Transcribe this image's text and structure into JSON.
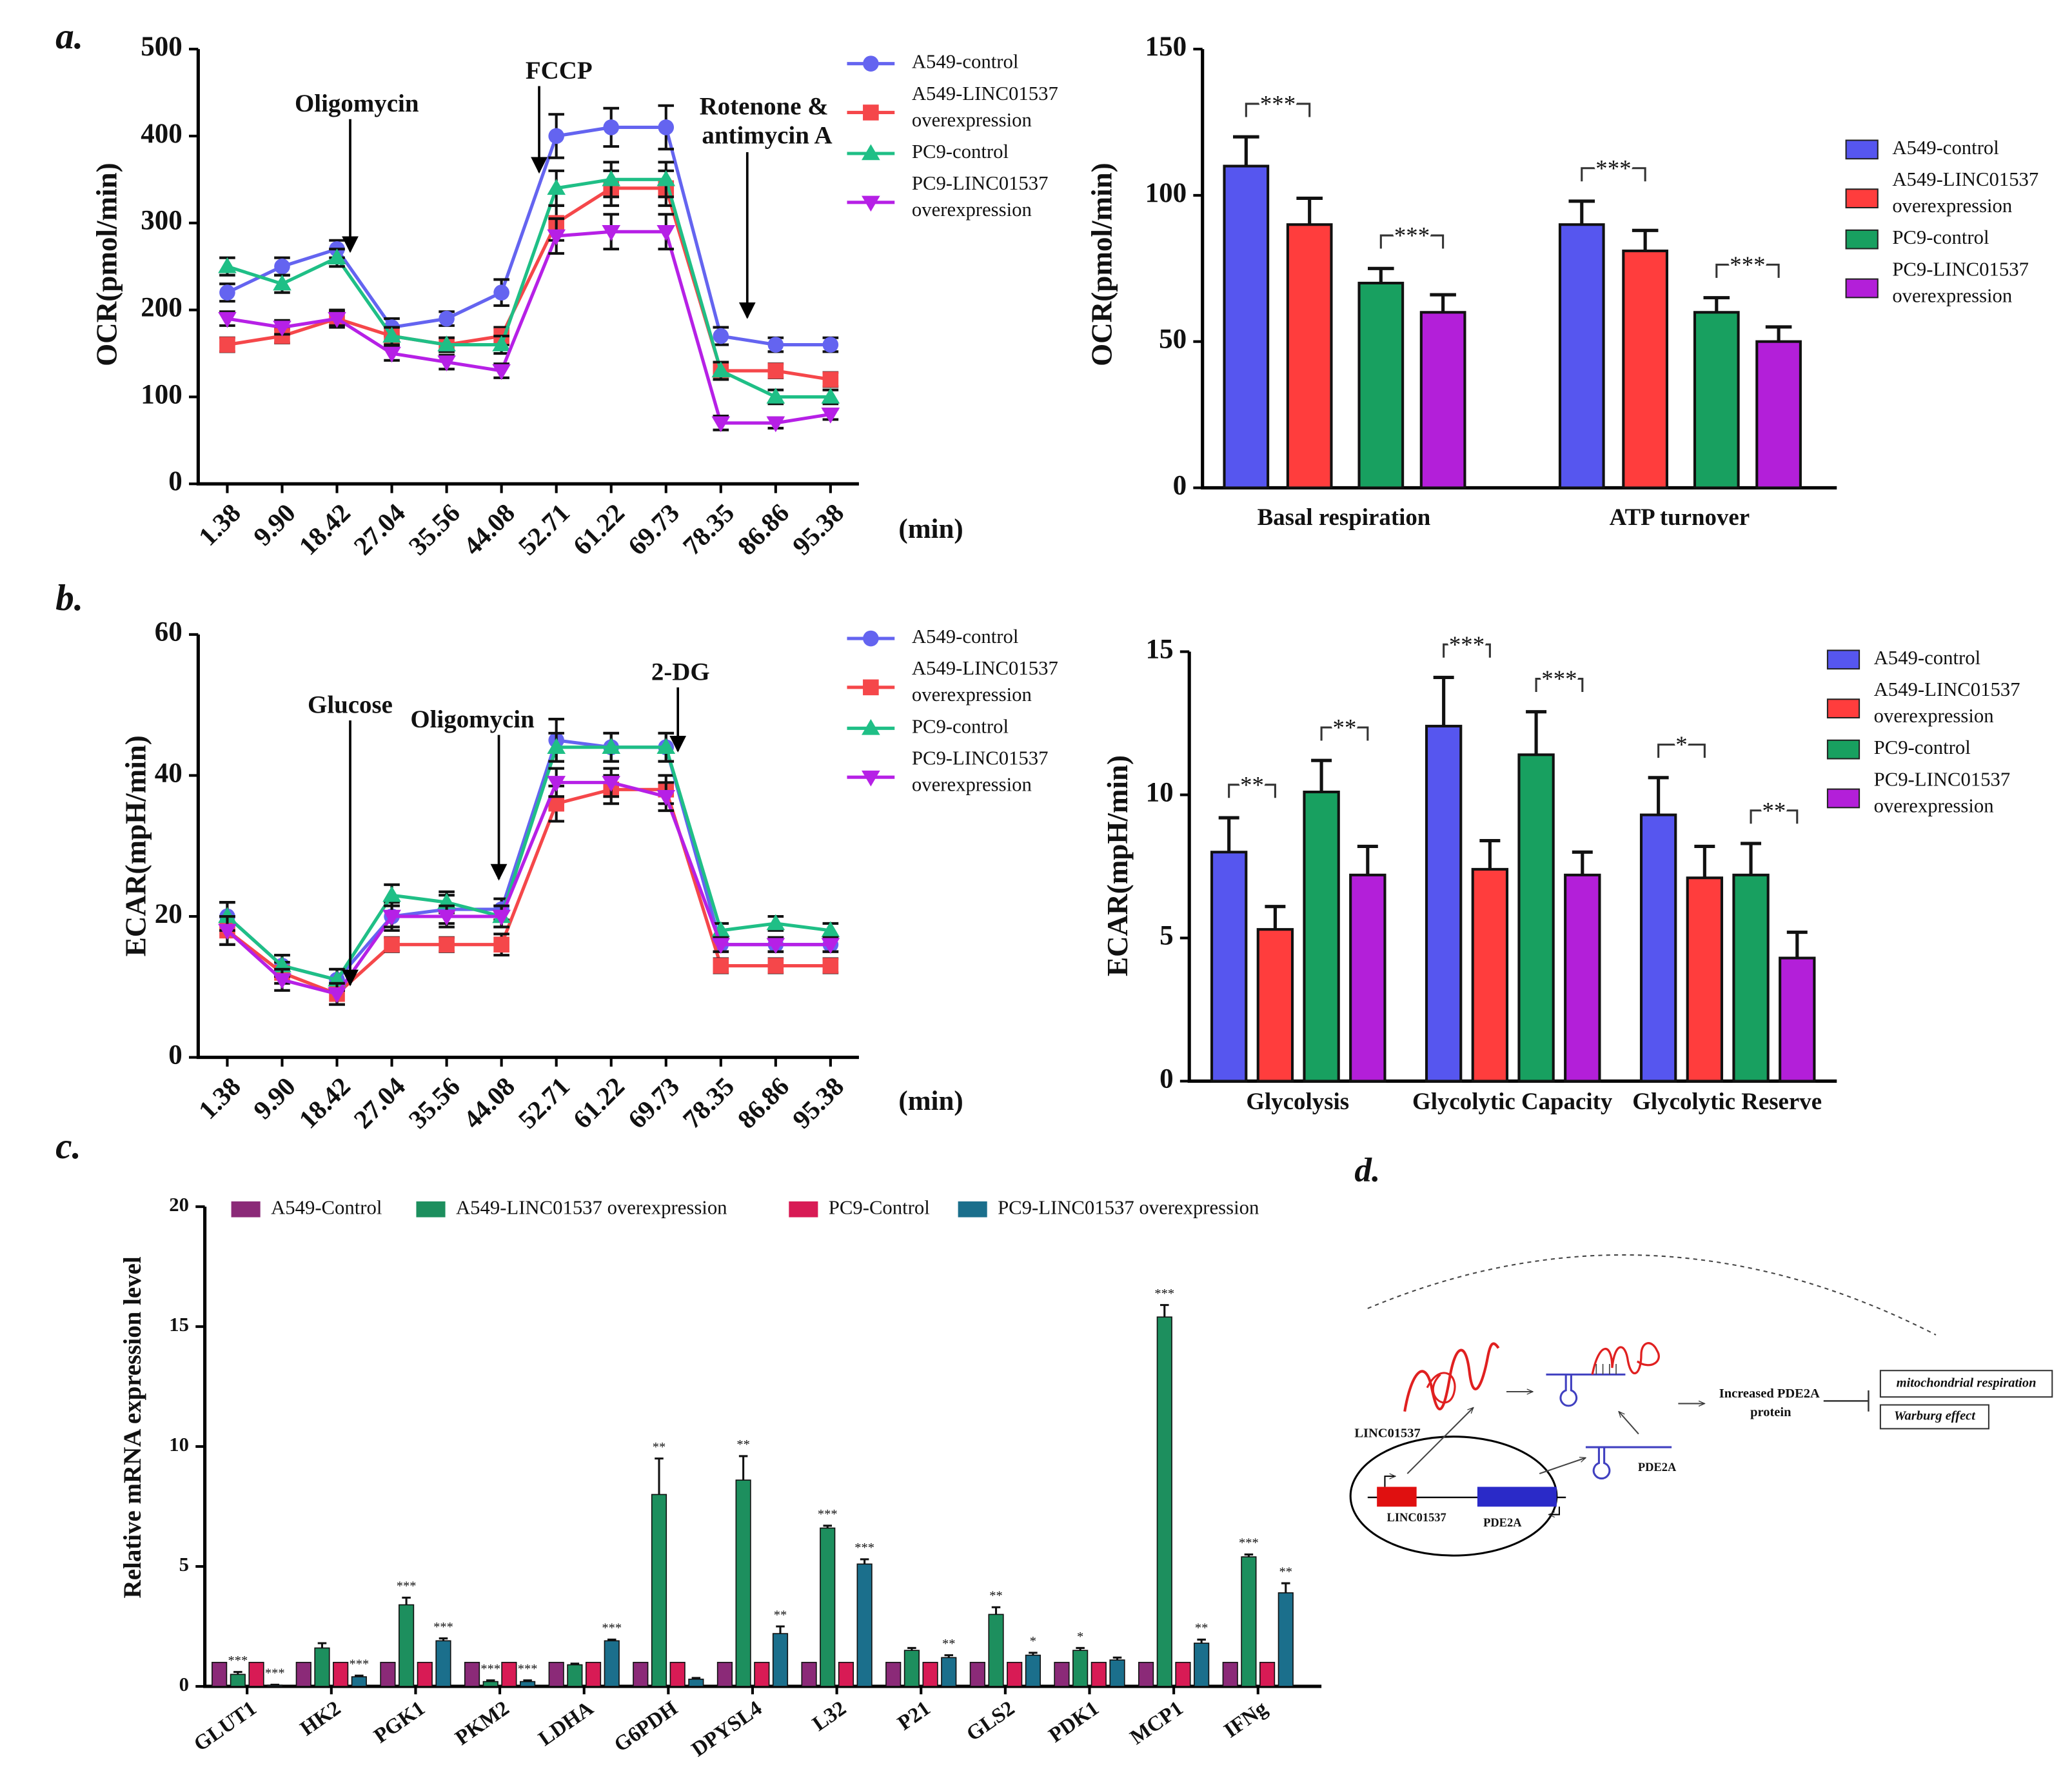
{
  "chart_data": [
    {
      "type": "line",
      "panel_label": "a.",
      "y_label": "OCR(pmol/min)",
      "x_label": "(min)",
      "categories": [
        "1.38",
        "9.90",
        "18.42",
        "27.04",
        "35.56",
        "44.08",
        "52.71",
        "61.22",
        "69.73",
        "78.35",
        "86.86",
        "95.38"
      ],
      "ylim": [
        0,
        500
      ],
      "yticks": [
        0,
        100,
        200,
        300,
        400,
        500
      ],
      "series": [
        {
          "name": "A549-control",
          "color": "#6464f0",
          "marker": "circle",
          "values": [
            220,
            250,
            270,
            180,
            190,
            220,
            400,
            410,
            410,
            170,
            160,
            160
          ],
          "errors": [
            10,
            10,
            10,
            10,
            8,
            15,
            25,
            22,
            25,
            10,
            8,
            8
          ]
        },
        {
          "name": "A549-LINC01537 overexpression",
          "color": "#f5474a",
          "marker": "square",
          "values": [
            160,
            170,
            190,
            170,
            160,
            170,
            300,
            340,
            340,
            130,
            130,
            120
          ],
          "errors": [
            8,
            8,
            10,
            10,
            8,
            10,
            20,
            20,
            20,
            10,
            8,
            8
          ]
        },
        {
          "name": "PC9-control",
          "color": "#1fbf86",
          "marker": "triangle-up",
          "values": [
            250,
            230,
            260,
            170,
            160,
            160,
            340,
            350,
            350,
            130,
            100,
            100
          ],
          "errors": [
            10,
            10,
            10,
            10,
            8,
            10,
            20,
            20,
            20,
            10,
            8,
            8
          ]
        },
        {
          "name": "PC9-LINC01537 overexpression",
          "color": "#b620e6",
          "marker": "triangle-down",
          "values": [
            190,
            180,
            190,
            150,
            140,
            130,
            285,
            290,
            290,
            70,
            70,
            80
          ],
          "errors": [
            8,
            8,
            8,
            8,
            8,
            8,
            20,
            20,
            20,
            8,
            6,
            6
          ]
        }
      ],
      "annotations": [
        {
          "text": "Oligomycin",
          "category": 2
        },
        {
          "text": "FCCP",
          "category": 6
        },
        {
          "text": "Rotenone & antimycin A",
          "category": 9
        }
      ]
    },
    {
      "type": "bar",
      "y_label": "OCR(pmol/min)",
      "categories": [
        "Basal respiration",
        "ATP turnover"
      ],
      "ylim": [
        0,
        150
      ],
      "yticks": [
        0,
        50,
        100,
        150
      ],
      "series": [
        {
          "name": "A549-control",
          "color": "#5656ef",
          "values": [
            110,
            90
          ],
          "errors": [
            10,
            8
          ]
        },
        {
          "name": "A549-LINC01537 overexpression",
          "color": "#ff3d3d",
          "values": [
            90,
            81
          ],
          "errors": [
            9,
            7
          ]
        },
        {
          "name": "PC9-control",
          "color": "#18a060",
          "values": [
            70,
            60
          ],
          "errors": [
            5,
            5
          ]
        },
        {
          "name": "PC9-LINC01537 overexpression",
          "color": "#b31fd9",
          "values": [
            60,
            50
          ],
          "errors": [
            6,
            5
          ]
        }
      ],
      "significance": [
        {
          "text": "***",
          "category": 0,
          "series": [
            0,
            1
          ]
        },
        {
          "text": "***",
          "category": 0,
          "series": [
            2,
            3
          ]
        },
        {
          "text": "***",
          "category": 1,
          "series": [
            0,
            1
          ]
        },
        {
          "text": "***",
          "category": 1,
          "series": [
            2,
            3
          ]
        }
      ]
    },
    {
      "type": "line",
      "panel_label": "b.",
      "y_label": "ECAR(mpH/min)",
      "x_label": "(min)",
      "categories": [
        "1.38",
        "9.90",
        "18.42",
        "27.04",
        "35.56",
        "44.08",
        "52.71",
        "61.22",
        "69.73",
        "78.35",
        "86.86",
        "95.38"
      ],
      "ylim": [
        0,
        60
      ],
      "yticks": [
        0,
        20,
        40,
        60
      ],
      "series": [
        {
          "name": "A549-control",
          "color": "#6464f0",
          "marker": "circle",
          "values": [
            20,
            13,
            11,
            20,
            21,
            21,
            45,
            44,
            44,
            16,
            16,
            16
          ],
          "errors": [
            2,
            1.5,
            1.5,
            2,
            2,
            1.5,
            3,
            2,
            2,
            1,
            1,
            1
          ]
        },
        {
          "name": "A549-LINC01537 overexpression",
          "color": "#f5474a",
          "marker": "square",
          "values": [
            18,
            12,
            9,
            16,
            16,
            16,
            36,
            38,
            38,
            13,
            13,
            13
          ],
          "errors": [
            2,
            1.5,
            1.5,
            1,
            1,
            1.5,
            2.5,
            2,
            2,
            1,
            1,
            1
          ]
        },
        {
          "name": "PC9-control",
          "color": "#1fbf86",
          "marker": "triangle-up",
          "values": [
            20,
            13,
            11,
            23,
            22,
            20,
            44,
            44,
            44,
            18,
            19,
            18
          ],
          "errors": [
            2,
            1.5,
            1.5,
            1.5,
            1.5,
            1.5,
            2,
            2,
            2,
            1,
            1,
            1
          ]
        },
        {
          "name": "PC9-LINC01537 overexpression",
          "color": "#b620e6",
          "marker": "triangle-down",
          "values": [
            18,
            11,
            9,
            20,
            20,
            20,
            39,
            39,
            37,
            16,
            16,
            16
          ],
          "errors": [
            2,
            1.5,
            1.5,
            1.5,
            1.5,
            1.5,
            2,
            2,
            2,
            1,
            1,
            1
          ]
        }
      ],
      "annotations": [
        {
          "text": "Glucose",
          "category": 2
        },
        {
          "text": "Oligomycin",
          "category": 5
        },
        {
          "text": "2-DG",
          "category": 8
        }
      ]
    },
    {
      "type": "bar",
      "y_label": "ECAR(mpH/min)",
      "categories": [
        "Glycolysis",
        "Glycolytic Capacity",
        "Glycolytic Reserve"
      ],
      "ylim": [
        0,
        15
      ],
      "yticks": [
        0,
        5,
        10,
        15
      ],
      "series": [
        {
          "name": "A549-control",
          "color": "#5656ef",
          "values": [
            8.0,
            12.4,
            9.3
          ],
          "errors": [
            1.2,
            1.7,
            1.3
          ]
        },
        {
          "name": "A549-LINC01537 overexpression",
          "color": "#ff3d3d",
          "values": [
            5.3,
            7.4,
            7.1
          ],
          "errors": [
            0.8,
            1.0,
            1.1
          ]
        },
        {
          "name": "PC9-control",
          "color": "#18a060",
          "values": [
            10.1,
            11.4,
            7.2
          ],
          "errors": [
            1.1,
            1.5,
            1.1
          ]
        },
        {
          "name": "PC9-LINC01537 overexpression",
          "color": "#b31fd9",
          "values": [
            7.2,
            7.2,
            4.3
          ],
          "errors": [
            1.0,
            0.8,
            0.9
          ]
        }
      ],
      "significance": [
        {
          "text": "**",
          "category": 0,
          "series": [
            0,
            1
          ]
        },
        {
          "text": "**",
          "category": 0,
          "series": [
            2,
            3
          ]
        },
        {
          "text": "***",
          "category": 1,
          "series": [
            0,
            1
          ]
        },
        {
          "text": "***",
          "category": 1,
          "series": [
            2,
            3
          ]
        },
        {
          "text": "*",
          "category": 2,
          "series": [
            0,
            1
          ]
        },
        {
          "text": "**",
          "category": 2,
          "series": [
            2,
            3
          ]
        }
      ]
    },
    {
      "type": "bar",
      "panel_label": "c.",
      "y_label": "Relative mRNA expression level",
      "categories": [
        "GLUT1",
        "HK2",
        "PGK1",
        "PKM2",
        "LDHA",
        "G6PDH",
        "DPYSL4",
        "L32",
        "P21",
        "GLS2",
        "PDK1",
        "MCP1",
        "IFNg"
      ],
      "ylim": [
        0,
        20
      ],
      "yticks": [
        0,
        5,
        10,
        15,
        20
      ],
      "series": [
        {
          "name": "A549-Control",
          "color": "#8b2a78",
          "values": [
            1,
            1,
            1,
            1,
            1,
            1,
            1,
            1,
            1,
            1,
            1,
            1,
            1
          ]
        },
        {
          "name": "A549-LINC01537 overexpression",
          "color": "#1d8f5e",
          "values": [
            0.5,
            1.6,
            3.4,
            0.2,
            0.9,
            8.0,
            8.6,
            6.6,
            1.5,
            3.0,
            1.5,
            15.4,
            5.4
          ],
          "errors": [
            0.1,
            0.2,
            0.3,
            0.05,
            0.05,
            1.5,
            1.0,
            0.1,
            0.1,
            0.3,
            0.1,
            0.5,
            0.1
          ],
          "significance": [
            "***",
            null,
            "***",
            "***",
            null,
            "**",
            "**",
            "***",
            null,
            "**",
            "*",
            "***",
            "***"
          ]
        },
        {
          "name": "PC9-Control",
          "color": "#d81b55",
          "values": [
            1,
            1,
            1,
            1,
            1,
            1,
            1,
            1,
            1,
            1,
            1,
            1,
            1
          ]
        },
        {
          "name": "PC9-LINC01537 overexpression",
          "color": "#1b6f8c",
          "values": [
            0.05,
            0.4,
            1.9,
            0.2,
            1.9,
            0.3,
            2.2,
            5.1,
            1.2,
            1.3,
            1.1,
            1.8,
            3.9
          ],
          "errors": [
            0.02,
            0.05,
            0.1,
            0.05,
            0.05,
            0.05,
            0.3,
            0.2,
            0.1,
            0.1,
            0.1,
            0.15,
            0.4
          ],
          "significance": [
            "***",
            "***",
            "***",
            "***",
            "***",
            null,
            "**",
            "***",
            "**",
            "*",
            null,
            "**",
            "**"
          ]
        }
      ]
    }
  ],
  "diagram": {
    "panel_label": "d.",
    "labels": [
      "LINC01537",
      "LINC01537",
      "PDE2A",
      "PDE2A",
      "Increased PDE2A protein",
      "mitochondrial respiration",
      "Warburg effect"
    ]
  }
}
